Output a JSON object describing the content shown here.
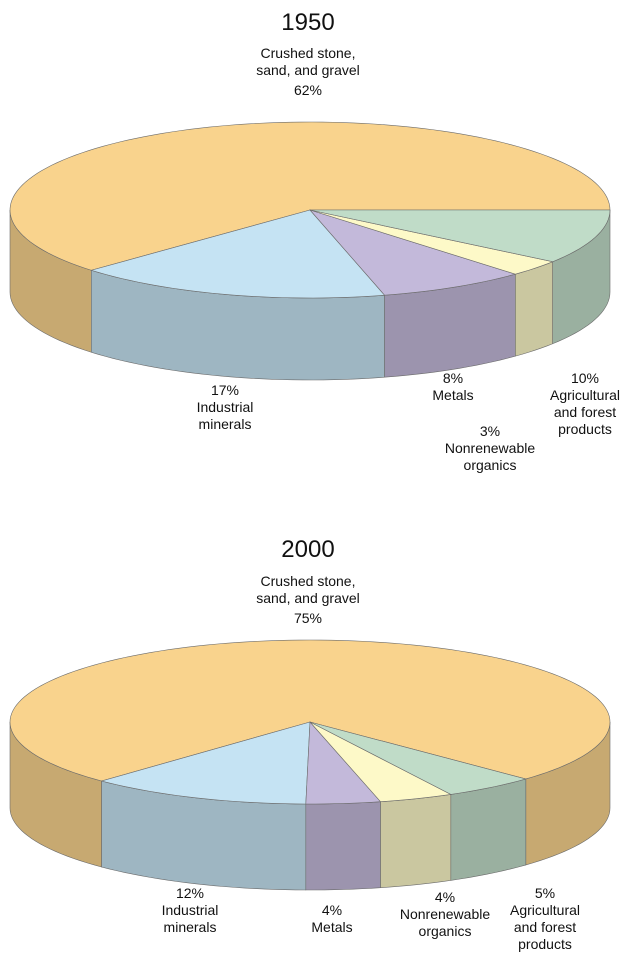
{
  "chart_data": [
    {
      "type": "pie",
      "title": "1950",
      "categories": [
        "Crushed stone, sand, and gravel",
        "Industrial minerals",
        "Metals",
        "Nonrenewable organics",
        "Agricultural and forest products"
      ],
      "values": [
        62,
        17,
        8,
        3,
        10
      ],
      "value_labels": [
        "62%",
        "17%",
        "8%",
        "3%",
        "10%"
      ],
      "colors": [
        "#f9d38d",
        "#c5e3f3",
        "#c3b9da",
        "#fdf9c8",
        "#c0dcc8"
      ]
    },
    {
      "type": "pie",
      "title": "2000",
      "categories": [
        "Crushed stone, sand, and gravel",
        "Industrial minerals",
        "Metals",
        "Nonrenewable organics",
        "Agricultural and forest products"
      ],
      "values": [
        75,
        12,
        4,
        4,
        5
      ],
      "value_labels": [
        "75%",
        "12%",
        "4%",
        "4%",
        "5%"
      ],
      "colors": [
        "#f9d38d",
        "#c5e3f3",
        "#c3b9da",
        "#fdf9c8",
        "#c0dcc8"
      ]
    }
  ]
}
